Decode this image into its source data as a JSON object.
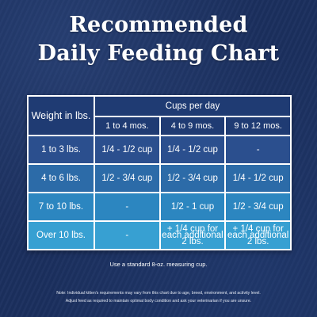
{
  "title": {
    "line1": "Recommended",
    "line2": "Daily Feeding Chart"
  },
  "table": {
    "weight_header": "Weight in lbs.",
    "cups_header": "Cups per day",
    "age_headers": [
      "1 to 4 mos.",
      "4 to 9 mos.",
      "9 to 12 mos."
    ],
    "rows": [
      {
        "weight": "1 to 3 lbs.",
        "values": [
          "1/4 - 1/2 cup",
          "1/4 - 1/2 cup",
          "-"
        ]
      },
      {
        "weight": "4 to 6 lbs.",
        "values": [
          "1/2 - 3/4 cup",
          "1/2 - 3/4 cup",
          "1/4 - 1/2 cup"
        ]
      },
      {
        "weight": "7 to 10 lbs.",
        "values": [
          "-",
          "1/2 - 1 cup",
          "1/2 - 3/4 cup"
        ]
      },
      {
        "weight": "Over 10 lbs.",
        "values": [
          "-",
          "+ 1/4 cup for each additional 2 lbs.",
          "+ 1/4 cup for each additional 2 lbs."
        ]
      }
    ]
  },
  "notes": {
    "measure": "Use a standard 8-oz. measuring cup.",
    "fine_print_1": "Note: Individual kitten's requirements may vary from this chart due to age, breed, environment, and activity level.",
    "fine_print_2": "Adjust feed as required to maintain optimal body condition and ask your veterinarian if you are unsure."
  },
  "colors": {
    "background": "#1b2f5e",
    "header": "#1f3b73",
    "row1": "#2b4f8e",
    "row2": "#2c6ba8",
    "row3": "#2c86c0",
    "row4": "#37a0d2"
  }
}
